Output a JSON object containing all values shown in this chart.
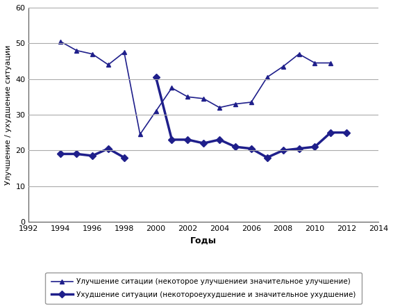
{
  "years_improvement": [
    1994,
    1995,
    1996,
    1997,
    1998,
    1999,
    2000,
    2001,
    2002,
    2003,
    2004,
    2005,
    2006,
    2007,
    2008,
    2009,
    2010,
    2011,
    2012
  ],
  "improvement": [
    50.5,
    48,
    47,
    44,
    47.5,
    24.5,
    31,
    37.5,
    35,
    34.5,
    32,
    33,
    33.5,
    40.5,
    43.5,
    47,
    44.5,
    44.5,
    null
  ],
  "years_worsening": [
    1994,
    1995,
    1996,
    1997,
    1998,
    1999,
    2000,
    2001,
    2002,
    2003,
    2004,
    2005,
    2006,
    2007,
    2008,
    2009,
    2010,
    2011,
    2012
  ],
  "worsening": [
    19,
    19,
    18.5,
    20.5,
    18,
    null,
    40.5,
    23,
    23,
    22,
    23,
    21,
    20.5,
    18,
    20,
    20.5,
    21,
    25,
    25
  ],
  "xlabel": "Годы",
  "ylabel": "Улучшение / ухудшение ситуации",
  "legend_improvement": "Улучшение ситации (некоторое улучшениеи значительное улучшение)",
  "legend_worsening": "Ухудшение ситуации (некотороеухудшение и значительное ухудшение)",
  "xlim": [
    1992,
    2014
  ],
  "ylim": [
    0,
    60
  ],
  "xticks": [
    1992,
    1994,
    1996,
    1998,
    2000,
    2002,
    2004,
    2006,
    2008,
    2010,
    2012,
    2014
  ],
  "yticks": [
    0,
    10,
    20,
    30,
    40,
    50,
    60
  ],
  "line_color": "#1F1F8B",
  "bg_color": "#ffffff",
  "grid_color": "#aaaaaa"
}
